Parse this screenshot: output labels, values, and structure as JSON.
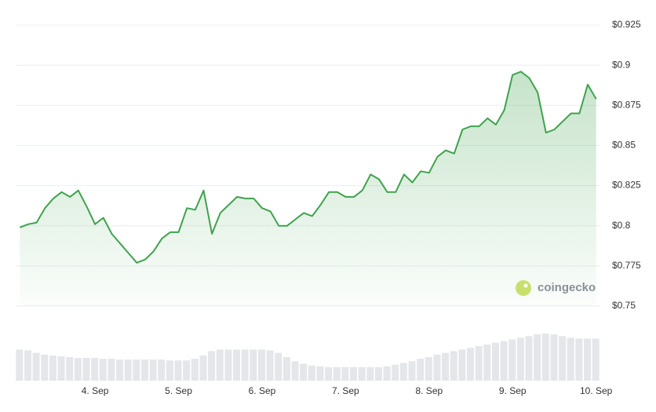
{
  "chart_data": {
    "type": "line",
    "watermark": "coingecko",
    "x": [
      3.1,
      3.2,
      3.3,
      3.4,
      3.5,
      3.6,
      3.7,
      3.8,
      3.9,
      4.0,
      4.1,
      4.2,
      4.3,
      4.4,
      4.5,
      4.6,
      4.7,
      4.8,
      4.9,
      5.0,
      5.1,
      5.2,
      5.3,
      5.4,
      5.5,
      5.6,
      5.7,
      5.8,
      5.9,
      6.0,
      6.1,
      6.2,
      6.3,
      6.4,
      6.5,
      6.6,
      6.7,
      6.8,
      6.9,
      7.0,
      7.1,
      7.2,
      7.3,
      7.4,
      7.5,
      7.6,
      7.7,
      7.8,
      7.9,
      8.0,
      8.1,
      8.2,
      8.3,
      8.4,
      8.5,
      8.6,
      8.7,
      8.8,
      8.9,
      9.0,
      9.1,
      9.2,
      9.3,
      9.4,
      9.5,
      9.6,
      9.7,
      9.8,
      9.9,
      10.0
    ],
    "series": [
      {
        "color": "#3fa34d",
        "values": [
          0.799,
          0.801,
          0.802,
          0.811,
          0.817,
          0.821,
          0.818,
          0.822,
          0.812,
          0.801,
          0.805,
          0.795,
          0.789,
          0.783,
          0.777,
          0.779,
          0.784,
          0.792,
          0.796,
          0.796,
          0.811,
          0.81,
          0.822,
          0.795,
          0.808,
          0.813,
          0.818,
          0.817,
          0.817,
          0.811,
          0.809,
          0.8,
          0.8,
          0.804,
          0.808,
          0.806,
          0.813,
          0.821,
          0.821,
          0.818,
          0.818,
          0.822,
          0.832,
          0.829,
          0.821,
          0.821,
          0.832,
          0.827,
          0.834,
          0.833,
          0.843,
          0.847,
          0.845,
          0.86,
          0.862,
          0.862,
          0.867,
          0.863,
          0.872,
          0.894,
          0.896,
          0.892,
          0.883,
          0.858,
          0.86,
          0.865,
          0.87,
          0.87,
          0.888,
          0.879
        ]
      }
    ],
    "volumes": [
      37,
      36,
      33,
      31,
      30,
      29,
      28,
      27,
      27,
      27,
      26,
      26,
      25,
      25,
      25,
      25,
      25,
      25,
      24,
      24,
      24,
      26,
      30,
      35,
      37,
      37,
      37,
      37,
      37,
      37,
      36,
      33,
      28,
      23,
      20,
      18,
      17,
      16,
      16,
      16,
      16,
      16,
      16,
      16,
      17,
      19,
      21,
      23,
      26,
      28,
      31,
      33,
      35,
      37,
      39,
      41,
      43,
      45,
      47,
      49,
      51,
      53,
      55,
      56,
      55,
      53,
      51,
      50,
      50,
      50
    ],
    "xlim": [
      3.05,
      10.05
    ],
    "xticks": [
      {
        "value": 4,
        "label": "4. Sep"
      },
      {
        "value": 5,
        "label": "5. Sep"
      },
      {
        "value": 6,
        "label": "6. Sep"
      },
      {
        "value": 7,
        "label": "7. Sep"
      },
      {
        "value": 8,
        "label": "8. Sep"
      },
      {
        "value": 9,
        "label": "9. Sep"
      },
      {
        "value": 10,
        "label": "10. Sep"
      }
    ],
    "ylim": [
      0.75,
      0.925
    ],
    "yticks": [
      {
        "value": 0.75,
        "label": "$0.75"
      },
      {
        "value": 0.775,
        "label": "$0.775"
      },
      {
        "value": 0.8,
        "label": "$0.8"
      },
      {
        "value": 0.825,
        "label": "$0.825"
      },
      {
        "value": 0.85,
        "label": "$0.85"
      },
      {
        "value": 0.875,
        "label": "$0.875"
      },
      {
        "value": 0.9,
        "label": "$0.9"
      },
      {
        "value": 0.925,
        "label": "$0.925"
      }
    ],
    "grid": true
  }
}
